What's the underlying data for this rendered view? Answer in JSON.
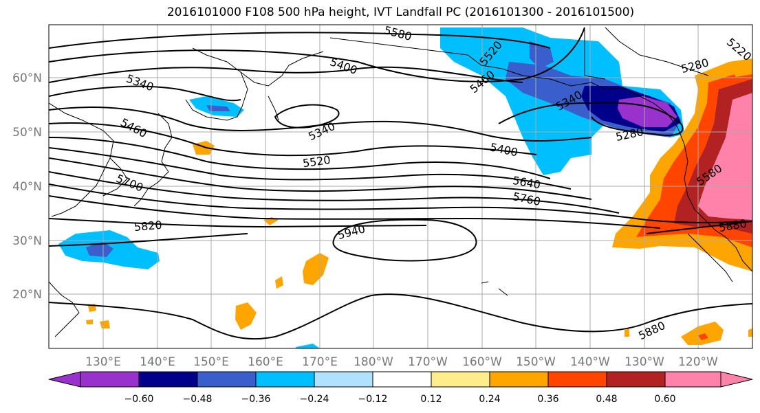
{
  "title": "2016101000 F108 500 hPa height, IVT Landfall PC (2016101300 - 2016101500)",
  "map": {
    "lat_labels": [
      "60°N",
      "50°N",
      "40°N",
      "30°N",
      "20°N"
    ],
    "lon_labels": [
      "130°E",
      "140°E",
      "150°E",
      "160°E",
      "170°E",
      "180°W",
      "170°W",
      "160°W",
      "150°W",
      "140°W",
      "130°W",
      "120°W"
    ],
    "height_contour_labels": [
      "5580",
      "5520",
      "5460",
      "5400",
      "5340",
      "5340",
      "5280",
      "5220",
      "5280",
      "5460",
      "5340",
      "5400",
      "5520",
      "5640",
      "5760",
      "5700",
      "5820",
      "5940",
      "5580",
      "5880",
      "5880"
    ],
    "colors": {
      "purple": "#9932cc",
      "navy": "#00008b",
      "royal": "#3a5fcd",
      "deepsky": "#00bfff",
      "lightsky": "#b0e2ff",
      "white": "#ffffff",
      "khaki": "#ffec8b",
      "orange": "#ffa500",
      "orangered": "#ff4500",
      "firebrick": "#b22222",
      "pink": "#ff82ab"
    }
  },
  "colorbar": {
    "labels": [
      "−0.60",
      "−0.48",
      "−0.36",
      "−0.24",
      "−0.12",
      "0.12",
      "0.24",
      "0.36",
      "0.48",
      "0.60"
    ],
    "colors": [
      "#9932cc",
      "#00008b",
      "#3a5fcd",
      "#00bfff",
      "#b0e2ff",
      "#ffffff",
      "#ffec8b",
      "#ffa500",
      "#ff4500",
      "#b22222",
      "#ff82ab"
    ]
  }
}
